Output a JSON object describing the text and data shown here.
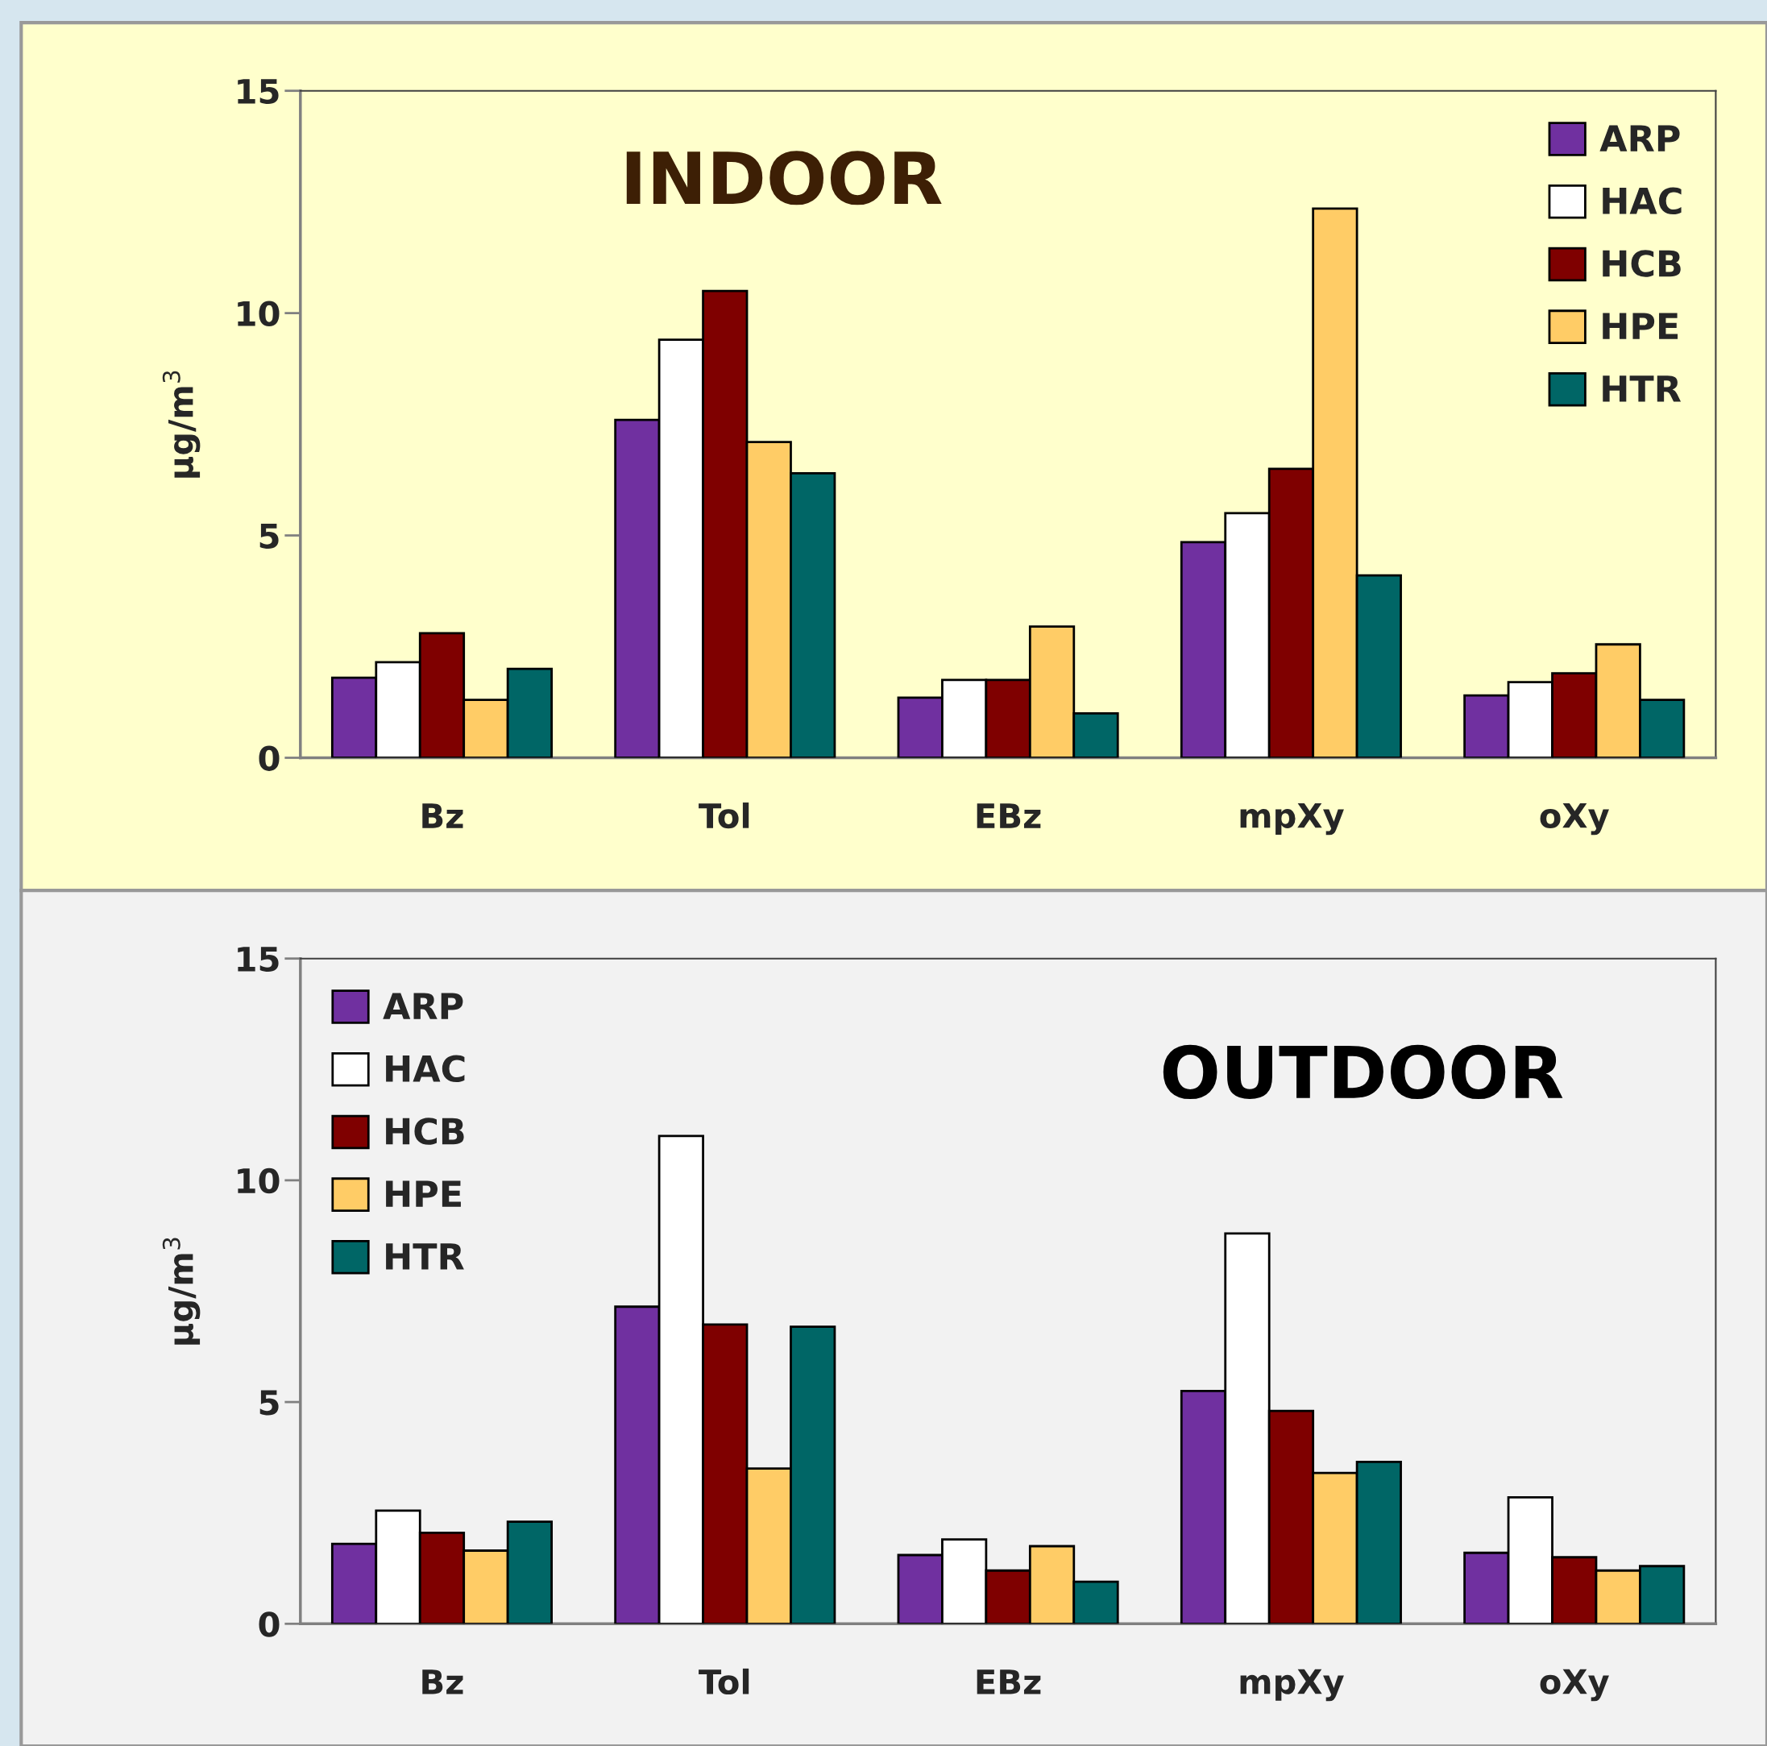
{
  "chart_data": [
    {
      "type": "bar",
      "title": "INDOOR",
      "ylabel": "µg/m$^{3}$",
      "categories": [
        "Bz",
        "Tol",
        "EBz",
        "mpXy",
        "oXy"
      ],
      "ylim": [
        0,
        15
      ],
      "yticks": [
        0,
        5,
        10,
        15
      ],
      "legend": "top right",
      "series": [
        {
          "name": "ARP",
          "color": "#7030a0",
          "values": [
            1.8,
            7.6,
            1.35,
            4.85,
            1.4
          ]
        },
        {
          "name": "HAC",
          "color": "#ffffff",
          "values": [
            2.15,
            9.4,
            1.75,
            5.5,
            1.7
          ]
        },
        {
          "name": "HCB",
          "color": "#7f0000",
          "values": [
            2.8,
            10.5,
            1.75,
            6.5,
            1.9
          ]
        },
        {
          "name": "HPE",
          "color": "#ffcc66",
          "values": [
            1.3,
            7.1,
            2.95,
            12.35,
            2.55
          ]
        },
        {
          "name": "HTR",
          "color": "#006666",
          "values": [
            2.0,
            6.4,
            1.0,
            4.1,
            1.3
          ]
        }
      ]
    },
    {
      "type": "bar",
      "title": "OUTDOOR",
      "ylabel": "µg/m$^{3}$",
      "categories": [
        "Bz",
        "Tol",
        "EBz",
        "mpXy",
        "oXy"
      ],
      "ylim": [
        0,
        15
      ],
      "yticks": [
        0,
        5,
        10,
        15
      ],
      "legend": "top left",
      "series": [
        {
          "name": "ARP",
          "color": "#7030a0",
          "values": [
            1.8,
            7.15,
            1.55,
            5.25,
            1.6
          ]
        },
        {
          "name": "HAC",
          "color": "#ffffff",
          "values": [
            2.55,
            11.0,
            1.9,
            8.8,
            2.85
          ]
        },
        {
          "name": "HCB",
          "color": "#7f0000",
          "values": [
            2.05,
            6.75,
            1.2,
            4.8,
            1.5
          ]
        },
        {
          "name": "HPE",
          "color": "#ffcc66",
          "values": [
            1.65,
            3.5,
            1.75,
            3.4,
            1.2
          ]
        },
        {
          "name": "HTR",
          "color": "#006666",
          "values": [
            2.3,
            6.7,
            0.95,
            3.65,
            1.3
          ]
        }
      ]
    }
  ]
}
